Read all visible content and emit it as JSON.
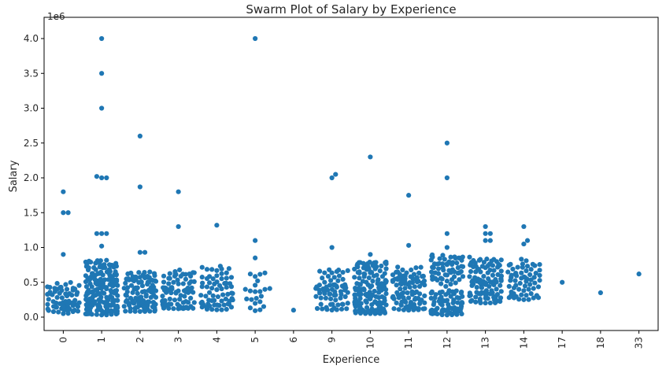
{
  "chart_data": {
    "type": "scatter",
    "title": "Swarm Plot of Salary by Experience",
    "xlabel": "Experience",
    "ylabel": "Salary",
    "y_offset_label": "1e6",
    "ylim": [
      -0.15,
      4.2
    ],
    "y_ticks": [
      0.0,
      0.5,
      1.0,
      1.5,
      2.0,
      2.5,
      3.0,
      3.5,
      4.0
    ],
    "y_tick_labels": [
      "0.0",
      "0.5",
      "1.0",
      "1.5",
      "2.0",
      "2.5",
      "3.0",
      "3.5",
      "4.0"
    ],
    "categories": [
      "0",
      "1",
      "2",
      "3",
      "4",
      "5",
      "6",
      "9",
      "10",
      "11",
      "12",
      "13",
      "14",
      "17",
      "18",
      "33"
    ],
    "point_color": "#1f77b4",
    "grid": false,
    "outliers": {
      "0": [
        1.8,
        1.5,
        1.5,
        0.9
      ],
      "1": [
        4.0,
        3.5,
        3.0,
        2.02,
        2.0,
        2.0,
        1.2,
        1.2,
        1.2,
        1.02
      ],
      "2": [
        2.6,
        1.87,
        0.93,
        0.93
      ],
      "3": [
        1.8,
        1.3
      ],
      "4": [
        1.32
      ],
      "5": [
        4.0,
        1.1,
        0.85
      ],
      "6": [
        0.1
      ],
      "9": [
        2.05,
        2.0,
        1.0
      ],
      "10": [
        2.3,
        0.9
      ],
      "11": [
        1.75,
        1.03
      ],
      "12": [
        2.5,
        2.0,
        1.2,
        1.0
      ],
      "13": [
        1.3,
        1.2,
        1.2,
        1.1,
        1.1
      ],
      "14": [
        1.3,
        1.1,
        1.05
      ],
      "17": [
        0.5
      ],
      "18": [
        0.35
      ],
      "33": [
        0.62
      ]
    },
    "clusters": {
      "0": {
        "count": 70,
        "min": 0.05,
        "max": 0.5
      },
      "1": {
        "count": 200,
        "min": 0.03,
        "max": 0.82
      },
      "2": {
        "count": 110,
        "min": 0.08,
        "max": 0.65
      },
      "3": {
        "count": 85,
        "min": 0.12,
        "max": 0.7
      },
      "4": {
        "count": 70,
        "min": 0.1,
        "max": 0.75
      },
      "5": {
        "count": 22,
        "min": 0.08,
        "max": 0.66
      },
      "9": {
        "count": 70,
        "min": 0.1,
        "max": 0.7
      },
      "10": {
        "count": 170,
        "min": 0.05,
        "max": 0.82
      },
      "11": {
        "count": 105,
        "min": 0.1,
        "max": 0.72
      },
      "12": {
        "count": 140,
        "min": 0.03,
        "max": 0.9
      },
      "13": {
        "count": 110,
        "min": 0.2,
        "max": 0.88
      },
      "14": {
        "count": 65,
        "min": 0.25,
        "max": 0.84
      }
    }
  }
}
